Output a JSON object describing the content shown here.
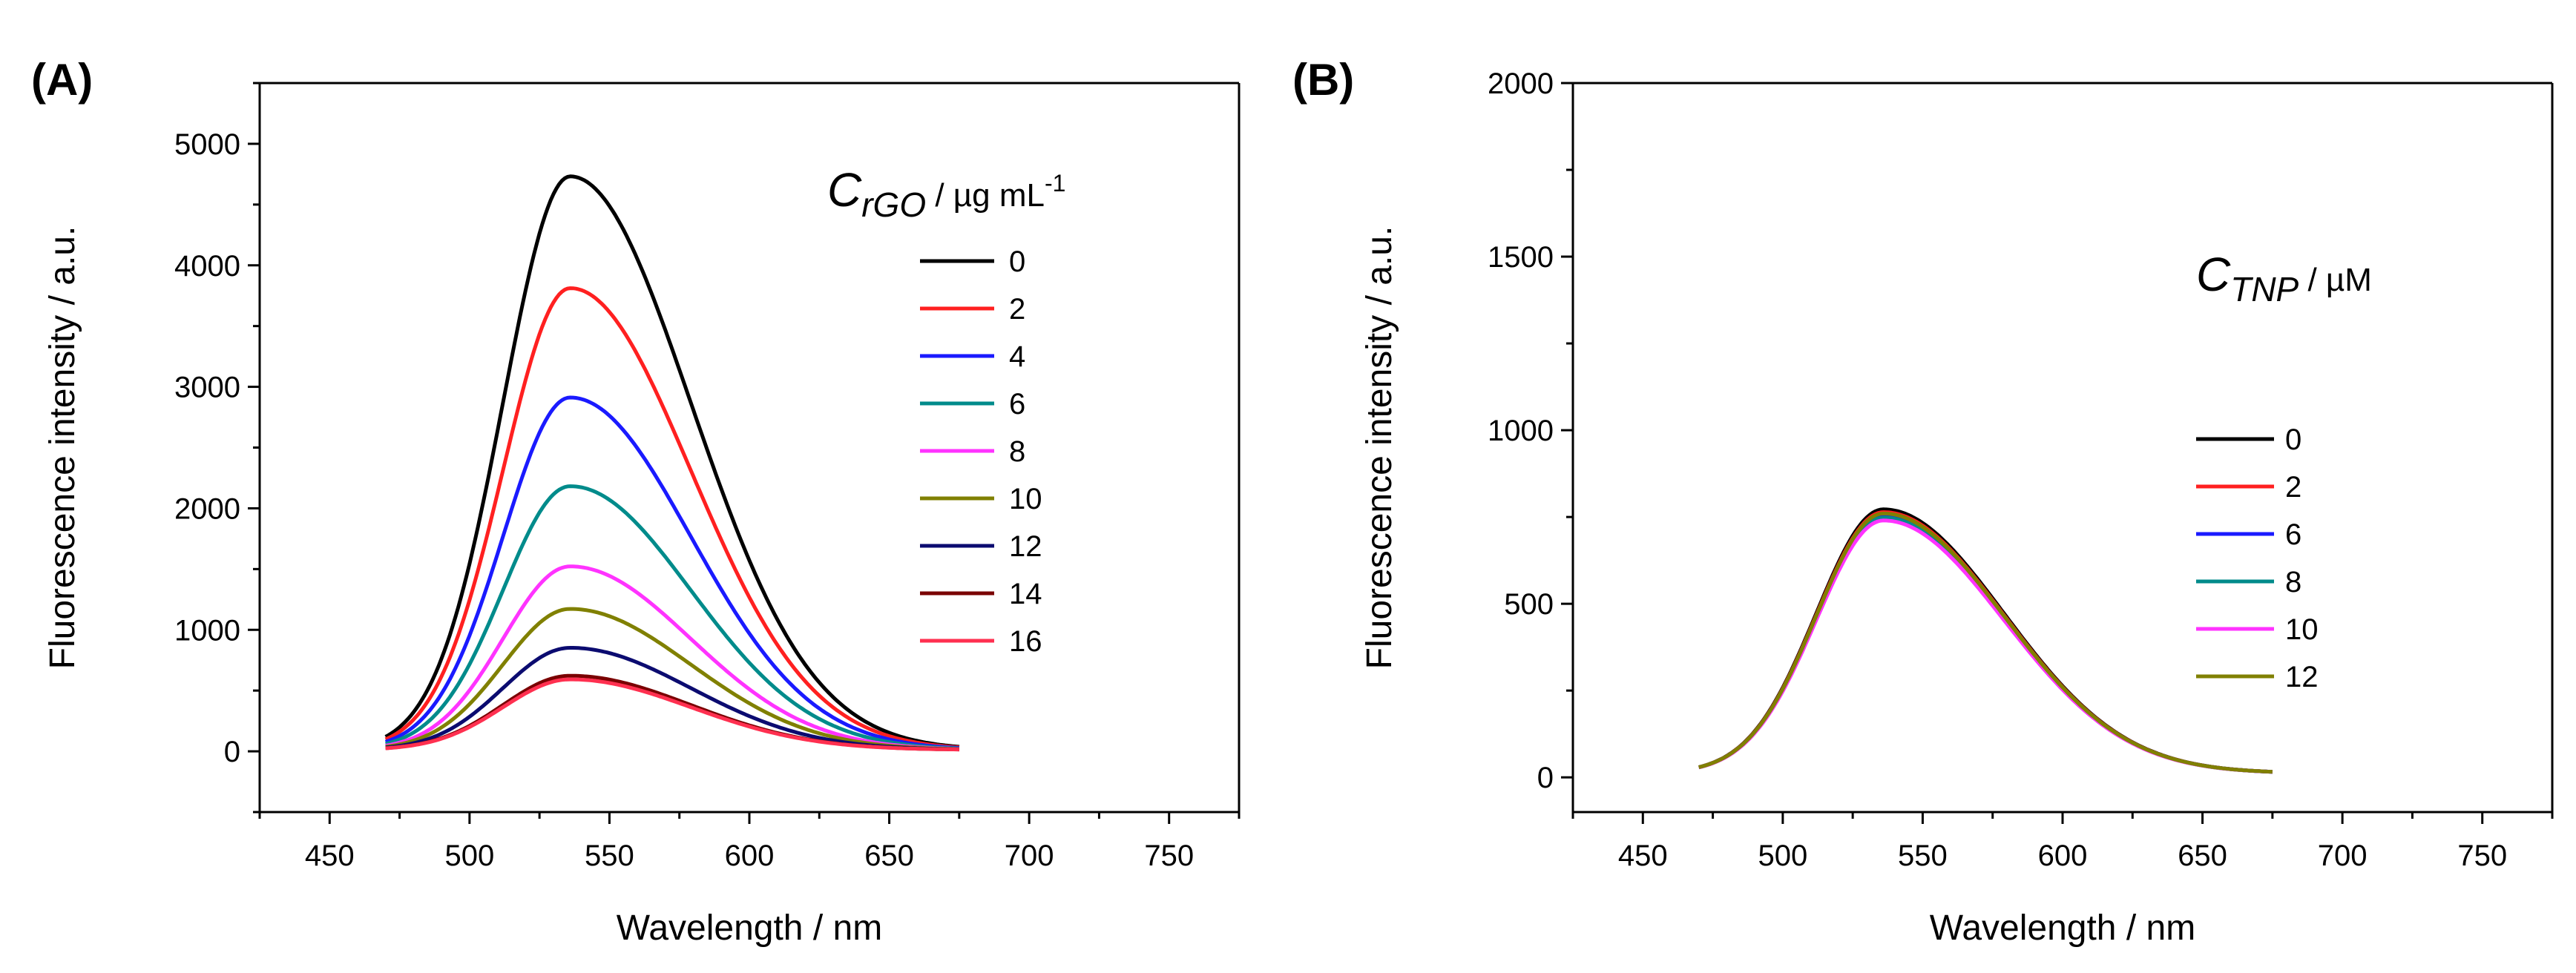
{
  "figure_labels": [
    "(A)",
    "(B)"
  ],
  "chart_data": [
    {
      "id": "A",
      "type": "line",
      "panel_label": "(A)",
      "title": "",
      "xlabel": "Wavelength / nm",
      "ylabel": "Fluorescence intensity / a.u.",
      "xlim": [
        425,
        775
      ],
      "ylim": [
        -500,
        5500
      ],
      "xticks": [
        450,
        500,
        550,
        600,
        650,
        700,
        750
      ],
      "yticks": [
        0,
        1000,
        2000,
        3000,
        4000,
        5000
      ],
      "legend_title": {
        "symbol": "C",
        "subscript": "rGO",
        "unit_pre": " / µg mL",
        "unit_sup": "-1"
      },
      "legend_position": "top-right",
      "peak_x": 536,
      "x_range": [
        470,
        675
      ],
      "series": [
        {
          "name": "0",
          "peak": 4720,
          "color": "#000000"
        },
        {
          "name": "2",
          "peak": 3800,
          "color": "#ff2020"
        },
        {
          "name": "4",
          "peak": 2900,
          "color": "#1a1aff"
        },
        {
          "name": "6",
          "peak": 2170,
          "color": "#008b8b"
        },
        {
          "name": "8",
          "peak": 1510,
          "color": "#ff33ff"
        },
        {
          "name": "10",
          "peak": 1160,
          "color": "#808000"
        },
        {
          "name": "12",
          "peak": 840,
          "color": "#0b0b70"
        },
        {
          "name": "14",
          "peak": 610,
          "color": "#7a0000"
        },
        {
          "name": "16",
          "peak": 580,
          "color": "#ff3050"
        }
      ]
    },
    {
      "id": "B",
      "type": "line",
      "panel_label": "(B)",
      "title": "",
      "xlabel": "Wavelength / nm",
      "ylabel": "Fluorescence intensity / a.u.",
      "xlim": [
        425,
        775
      ],
      "ylim": [
        -100,
        2000
      ],
      "xticks": [
        450,
        500,
        550,
        600,
        650,
        700,
        750
      ],
      "yticks": [
        0,
        500,
        1000,
        1500,
        2000
      ],
      "legend_title": {
        "symbol": "C",
        "subscript": "TNP",
        "unit_pre": " / µM",
        "unit_sup": ""
      },
      "legend_position": "right",
      "peak_x": 536,
      "x_range": [
        470,
        675
      ],
      "series": [
        {
          "name": "0",
          "peak": 760,
          "color": "#000000"
        },
        {
          "name": "2",
          "peak": 752,
          "color": "#ff2020"
        },
        {
          "name": "6",
          "peak": 744,
          "color": "#1a1aff"
        },
        {
          "name": "8",
          "peak": 736,
          "color": "#008b8b"
        },
        {
          "name": "10",
          "peak": 728,
          "color": "#ff33ff"
        },
        {
          "name": "12",
          "peak": 748,
          "color": "#808000"
        }
      ]
    }
  ]
}
